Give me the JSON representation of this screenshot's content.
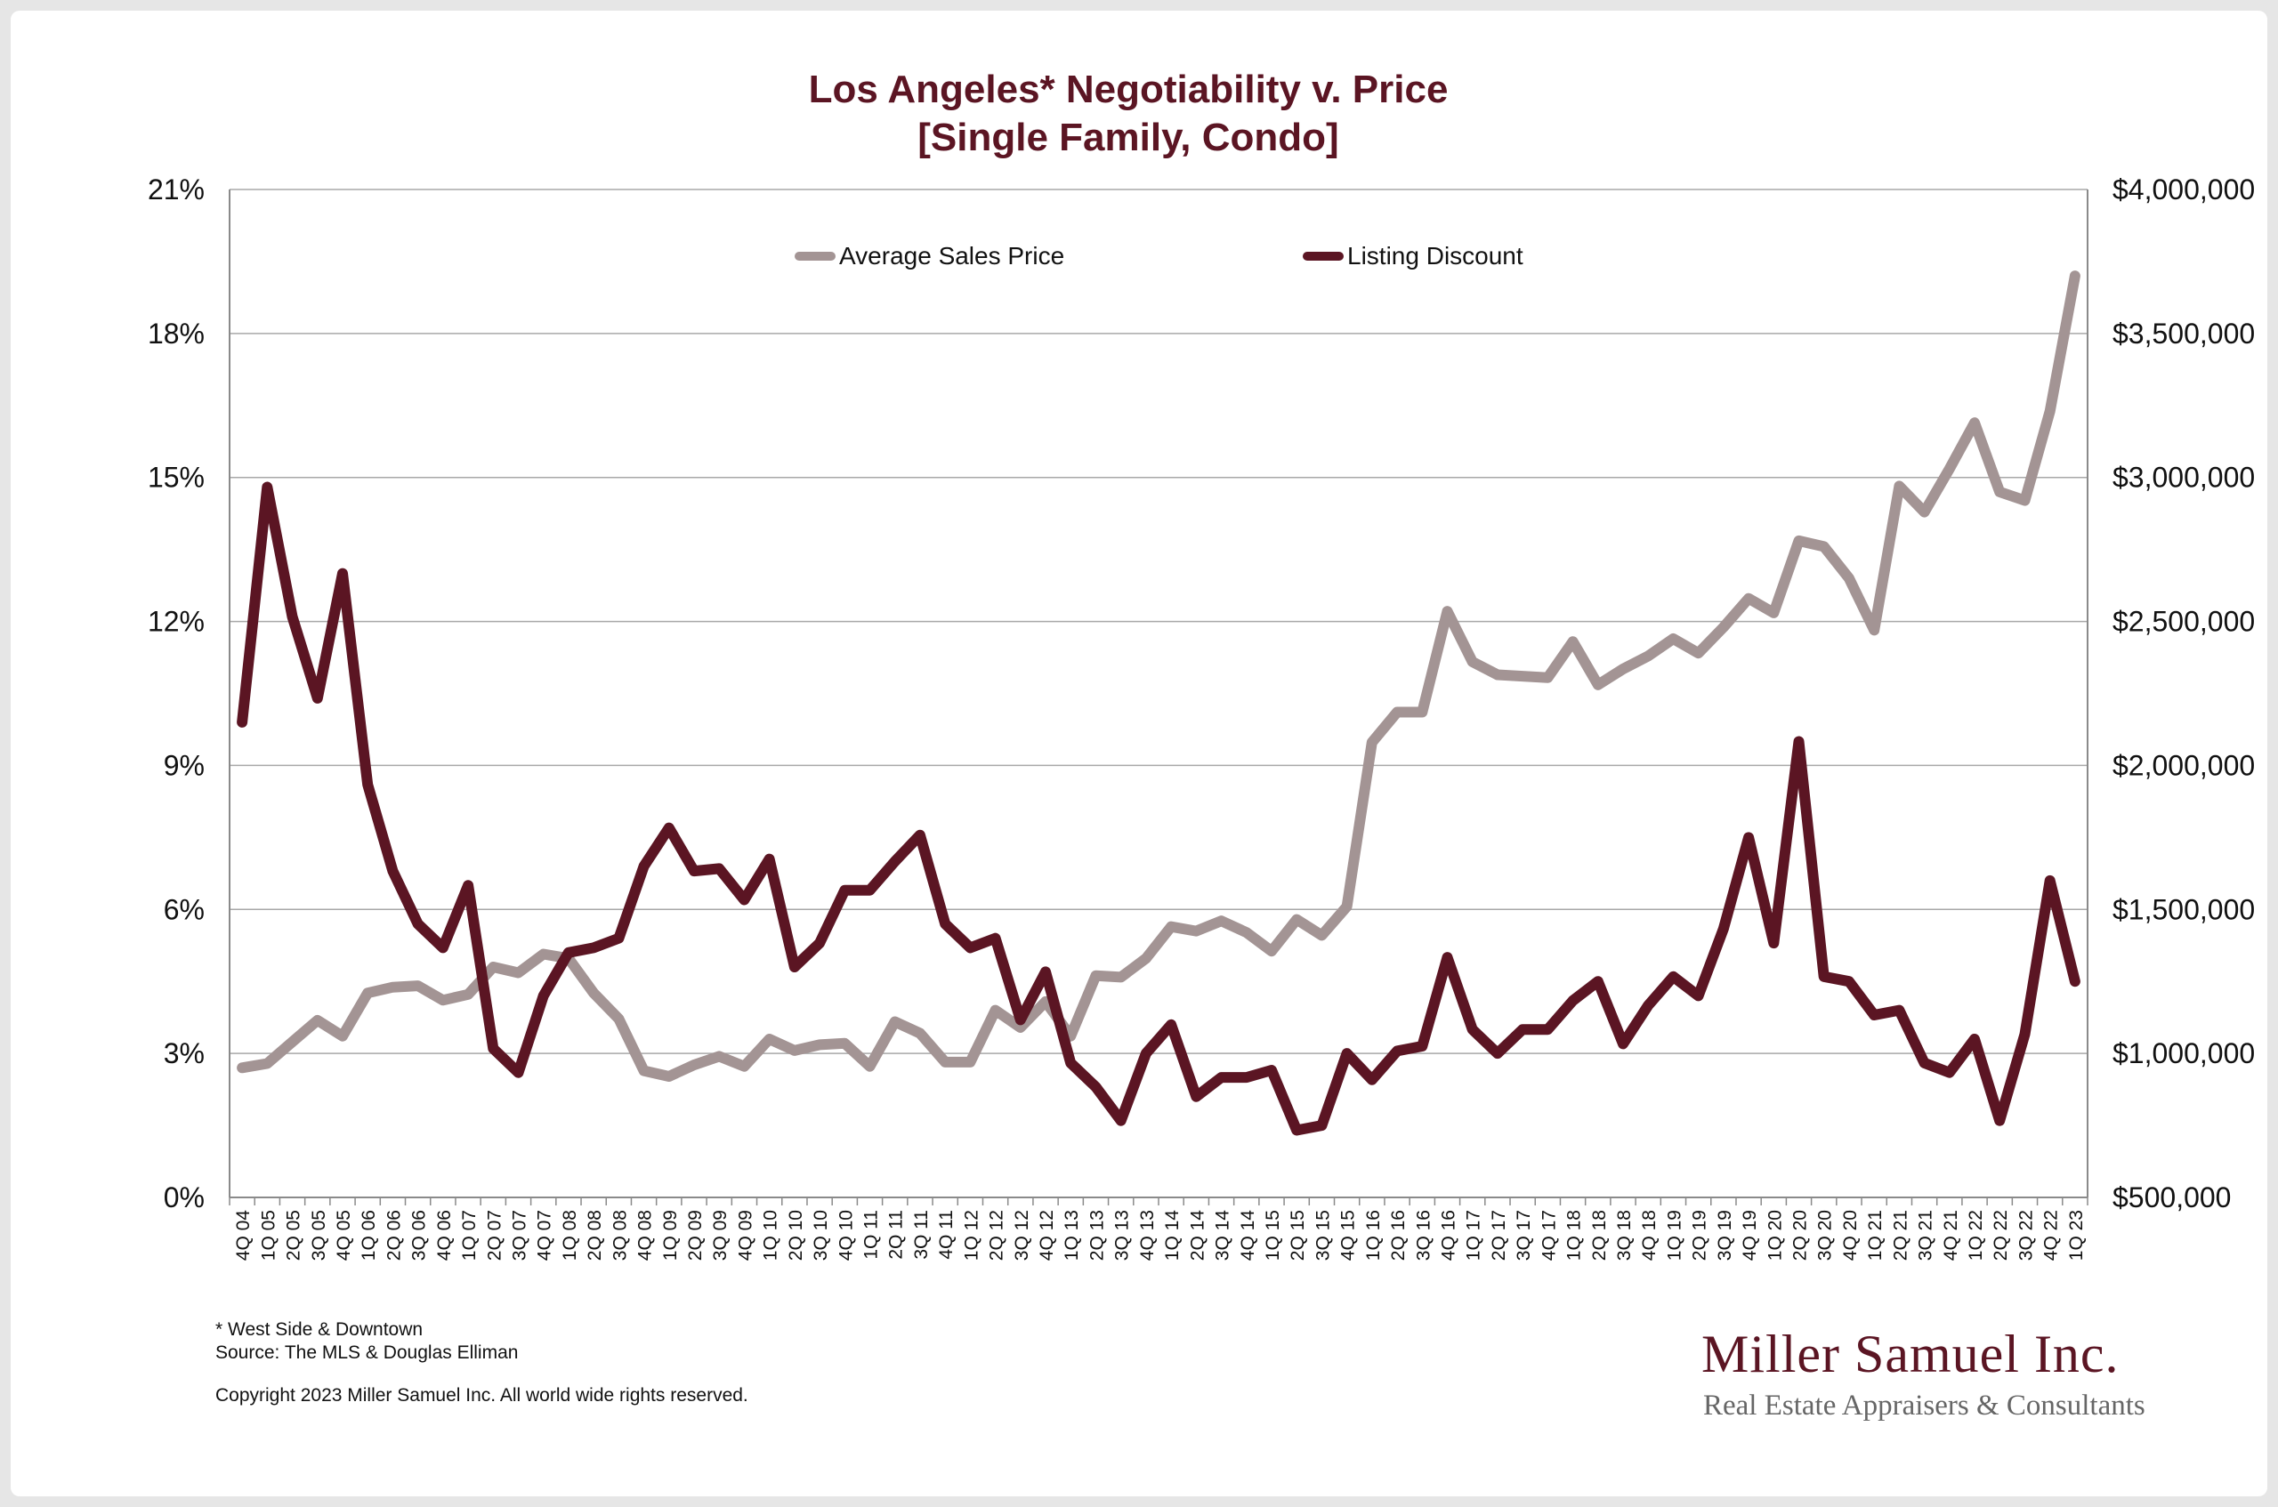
{
  "chart_data": {
    "type": "line",
    "title": "Los Angeles* Negotiability v. Price",
    "subtitle": "[Single Family, Condo]",
    "legend_placement": "top-center",
    "grid": true,
    "categories": [
      "4Q 04",
      "1Q 05",
      "2Q 05",
      "3Q 05",
      "4Q 05",
      "1Q 06",
      "2Q 06",
      "3Q 06",
      "4Q 06",
      "1Q 07",
      "2Q 07",
      "3Q 07",
      "4Q 07",
      "1Q 08",
      "2Q 08",
      "3Q 08",
      "4Q 08",
      "1Q 09",
      "2Q 09",
      "3Q 09",
      "4Q 09",
      "1Q 10",
      "2Q 10",
      "3Q 10",
      "4Q 10",
      "1Q 11",
      "2Q 11",
      "3Q 11",
      "4Q 11",
      "1Q 12",
      "2Q 12",
      "3Q 12",
      "4Q 12",
      "1Q 13",
      "2Q 13",
      "3Q 13",
      "4Q 13",
      "1Q 14",
      "2Q 14",
      "3Q 14",
      "4Q 14",
      "1Q 15",
      "2Q 15",
      "3Q 15",
      "4Q 15",
      "1Q 16",
      "2Q 16",
      "3Q 16",
      "4Q 16",
      "1Q 17",
      "2Q 17",
      "3Q 17",
      "4Q 17",
      "1Q 18",
      "2Q 18",
      "3Q 18",
      "4Q 18",
      "1Q 19",
      "2Q 19",
      "3Q 19",
      "4Q 19",
      "1Q 20",
      "2Q 20",
      "3Q 20",
      "4Q 20",
      "1Q 21",
      "2Q 21",
      "3Q 21",
      "4Q 21",
      "1Q 22",
      "2Q 22",
      "3Q 22",
      "4Q 22",
      "1Q 23"
    ],
    "left_axis": {
      "ylim": [
        0,
        21
      ],
      "ticks": [
        "0%",
        "3%",
        "6%",
        "9%",
        "12%",
        "15%",
        "18%",
        "21%"
      ]
    },
    "right_axis": {
      "ylim": [
        500000,
        4000000
      ],
      "ticks": [
        "$500,000",
        "$1,000,000",
        "$1,500,000",
        "$2,000,000",
        "$2,500,000",
        "$3,000,000",
        "$3,500,000",
        "$4,000,000"
      ]
    },
    "series": [
      {
        "name": "Average Sales Price",
        "axis": "right",
        "color": "#a39494",
        "values": [
          950000,
          965000,
          1040000,
          1115000,
          1060000,
          1210000,
          1230000,
          1235000,
          1185000,
          1205000,
          1300000,
          1280000,
          1345000,
          1330000,
          1210000,
          1120000,
          940000,
          920000,
          960000,
          990000,
          955000,
          1050000,
          1010000,
          1030000,
          1035000,
          955000,
          1110000,
          1070000,
          970000,
          970000,
          1150000,
          1090000,
          1180000,
          1060000,
          1270000,
          1265000,
          1330000,
          1440000,
          1425000,
          1460000,
          1420000,
          1355000,
          1465000,
          1410000,
          1510000,
          2080000,
          2185000,
          2185000,
          2535000,
          2360000,
          2315000,
          2310000,
          2305000,
          2430000,
          2280000,
          2335000,
          2380000,
          2440000,
          2390000,
          2480000,
          2580000,
          2530000,
          2780000,
          2760000,
          2650000,
          2470000,
          2970000,
          2880000,
          3030000,
          3190000,
          2950000,
          2920000,
          3230000,
          3700000
        ]
      },
      {
        "name": "Listing Discount",
        "axis": "left",
        "color": "#5b1523",
        "values": [
          9.9,
          14.8,
          12.1,
          10.4,
          13.0,
          8.6,
          6.8,
          5.7,
          5.2,
          6.5,
          3.1,
          2.6,
          4.2,
          5.1,
          5.2,
          5.4,
          6.9,
          7.7,
          6.8,
          6.85,
          6.2,
          7.05,
          4.8,
          5.3,
          6.4,
          6.4,
          7.0,
          7.55,
          5.7,
          5.2,
          5.4,
          3.7,
          4.7,
          2.8,
          2.3,
          1.6,
          3.0,
          3.6,
          2.1,
          2.5,
          2.5,
          2.65,
          1.4,
          1.5,
          3.0,
          2.45,
          3.05,
          3.15,
          5.0,
          3.5,
          3.0,
          3.5,
          3.5,
          4.1,
          4.5,
          3.2,
          4.0,
          4.6,
          4.2,
          5.6,
          7.5,
          5.3,
          9.5,
          4.6,
          4.5,
          3.8,
          3.9,
          2.8,
          2.6,
          3.3,
          1.6,
          3.4,
          6.6,
          4.5
        ]
      }
    ]
  },
  "footnote": "* West Side & Downtown",
  "source": "Source: The MLS & Douglas Elliman",
  "copyright": "Copyright 2023 Miller Samuel Inc.  All world wide rights reserved.",
  "brand": {
    "name": "Miller Samuel Inc.",
    "tagline": "Real Estate Appraisers & Consultants"
  }
}
